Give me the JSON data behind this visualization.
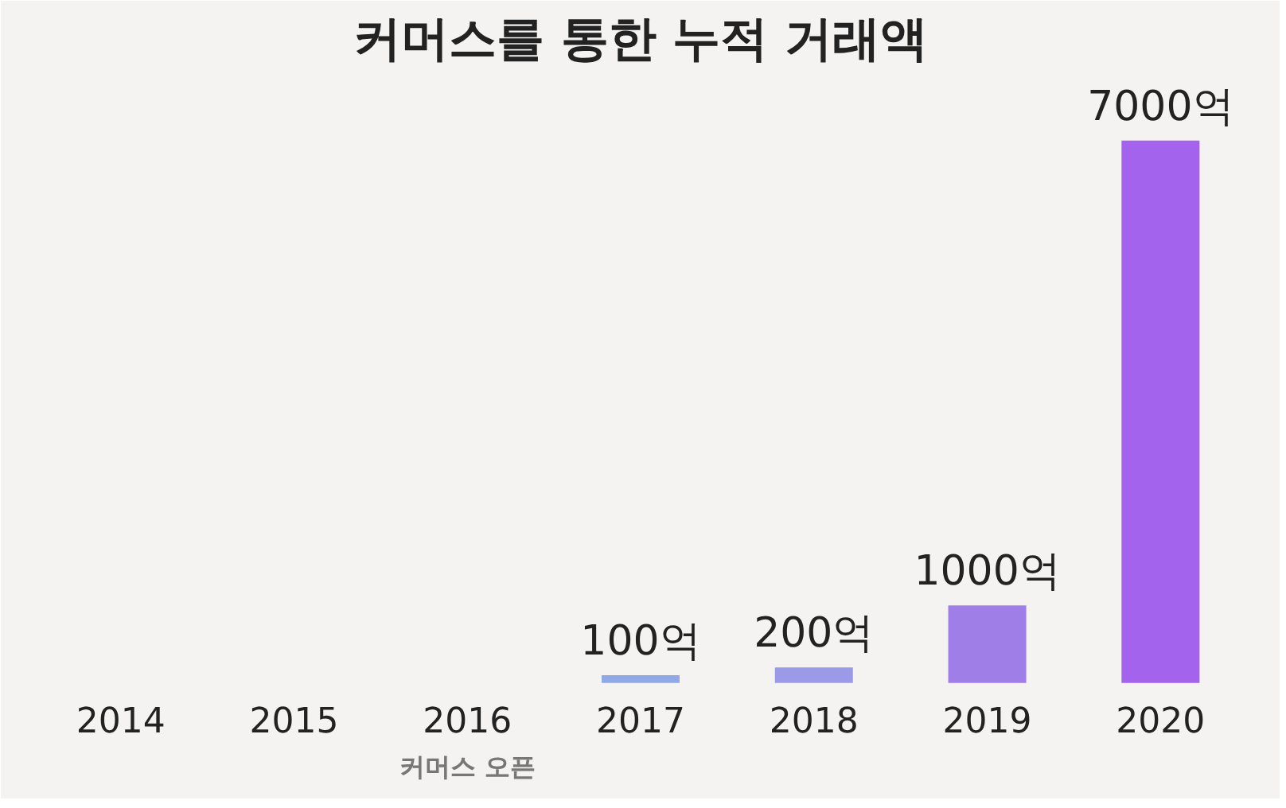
{
  "chart_data": {
    "type": "bar",
    "title": "커머스를 통한 누적 거래액",
    "categories": [
      "2014",
      "2015",
      "2016",
      "2017",
      "2018",
      "2019",
      "2020"
    ],
    "values": [
      null,
      null,
      null,
      100,
      200,
      1000,
      7000
    ],
    "colors": [
      "#8fa8e8",
      "#8fa8e8",
      "#8fa8e8",
      "#8fa8e8",
      "#9a9ae8",
      "#a07ee8",
      "#a463ec"
    ],
    "value_labels": [
      null,
      null,
      null,
      "100억",
      "200억",
      "1000억",
      "7000억"
    ],
    "annotations": [
      "커머스 오픈"
    ],
    "grid": false
  }
}
